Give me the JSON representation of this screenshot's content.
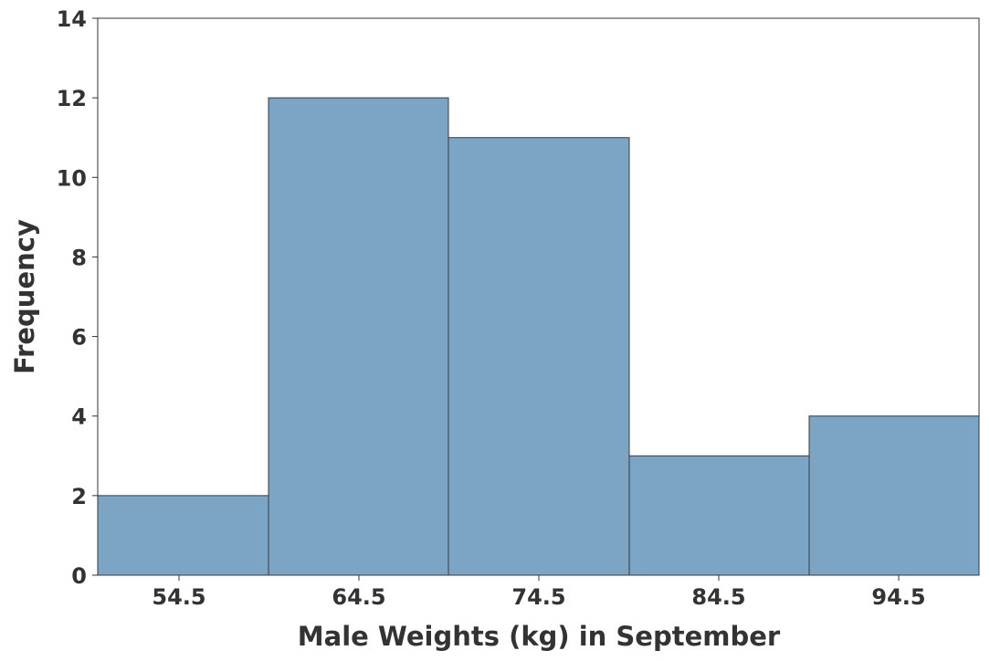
{
  "chart_data": {
    "type": "bar",
    "histogram": true,
    "categories": [
      "54.5",
      "64.5",
      "74.5",
      "84.5",
      "94.5"
    ],
    "values": [
      2,
      12,
      11,
      3,
      4
    ],
    "xlabel": "Male Weights (kg) in September",
    "ylabel": "Frequency",
    "ylim": [
      0,
      14
    ],
    "yticks": [
      "0",
      "2",
      "4",
      "6",
      "8",
      "10",
      "12",
      "14"
    ],
    "grid": false,
    "bar_color": "#7ba4c5",
    "bar_edge_color": "#3a3a3a"
  }
}
